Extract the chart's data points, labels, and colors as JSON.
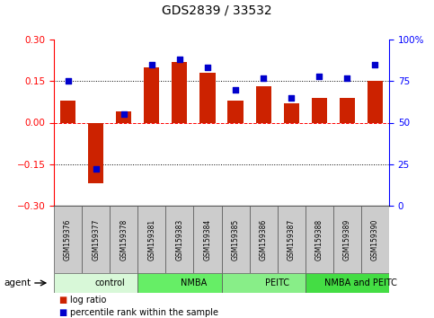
{
  "title": "GDS2839 / 33532",
  "samples": [
    "GSM159376",
    "GSM159377",
    "GSM159378",
    "GSM159381",
    "GSM159383",
    "GSM159384",
    "GSM159385",
    "GSM159386",
    "GSM159387",
    "GSM159388",
    "GSM159389",
    "GSM159390"
  ],
  "log_ratio": [
    0.08,
    -0.22,
    0.04,
    0.2,
    0.22,
    0.18,
    0.08,
    0.13,
    0.07,
    0.09,
    0.09,
    0.15
  ],
  "percentile_rank": [
    75,
    22,
    55,
    85,
    88,
    83,
    70,
    77,
    65,
    78,
    77,
    85
  ],
  "groups": [
    {
      "label": "control",
      "start": 0,
      "end": 3,
      "color": "#d8f8d8"
    },
    {
      "label": "NMBA",
      "start": 3,
      "end": 6,
      "color": "#66ee66"
    },
    {
      "label": "PEITC",
      "start": 6,
      "end": 9,
      "color": "#88ee88"
    },
    {
      "label": "NMBA and PEITC",
      "start": 9,
      "end": 12,
      "color": "#44dd44"
    }
  ],
  "bar_color": "#cc2200",
  "dot_color": "#0000cc",
  "ylim_left": [
    -0.3,
    0.3
  ],
  "ylim_right": [
    0,
    100
  ],
  "yticks_left": [
    -0.3,
    -0.15,
    0,
    0.15,
    0.3
  ],
  "yticks_right": [
    0,
    25,
    50,
    75,
    100
  ],
  "hline_dotted": [
    -0.15,
    0.15
  ],
  "hline_dashed": [
    0
  ],
  "sample_box_color": "#cccccc",
  "label_fontsize": 5.5,
  "group_fontsize": 7
}
